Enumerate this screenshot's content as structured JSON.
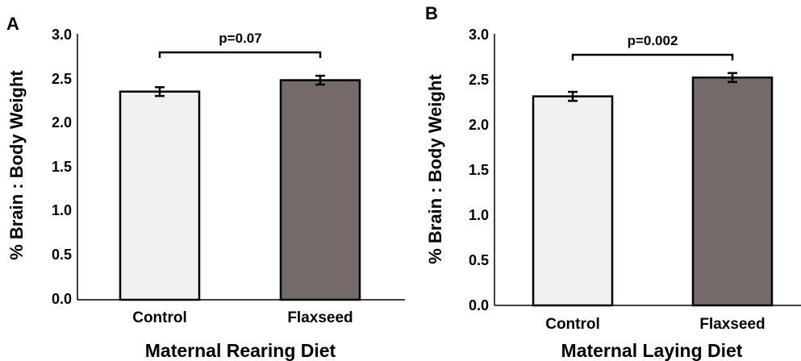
{
  "chart_data": [
    {
      "panel": "A",
      "type": "bar",
      "categories": [
        "Control",
        "Flaxseed"
      ],
      "values": [
        2.37,
        2.5
      ],
      "errors": [
        0.05,
        0.05
      ],
      "colors": [
        "#f0f0f0",
        "#746a6a"
      ],
      "xlabel": "Maternal Rearing Diet",
      "ylabel": "% Brain : Body Weight",
      "ylim": [
        0.0,
        3.0
      ],
      "yticks": [
        "0.0",
        "0.5",
        "1.0",
        "1.5",
        "2.0",
        "2.5",
        "3.0"
      ],
      "annotation": "p=0.07",
      "grid": false
    },
    {
      "panel": "B",
      "type": "bar",
      "categories": [
        "Control",
        "Flaxseed"
      ],
      "values": [
        2.33,
        2.54
      ],
      "errors": [
        0.05,
        0.05
      ],
      "colors": [
        "#f0f0f0",
        "#746a6a"
      ],
      "xlabel": "Maternal Laying Diet",
      "ylabel": "% Brain : Body Weight",
      "ylim": [
        0.0,
        3.0
      ],
      "yticks": [
        "0.0",
        "0.5",
        "1.0",
        "1.5",
        "2.0",
        "2.5",
        "3.0"
      ],
      "annotation": "p=0.002",
      "grid": false
    }
  ]
}
